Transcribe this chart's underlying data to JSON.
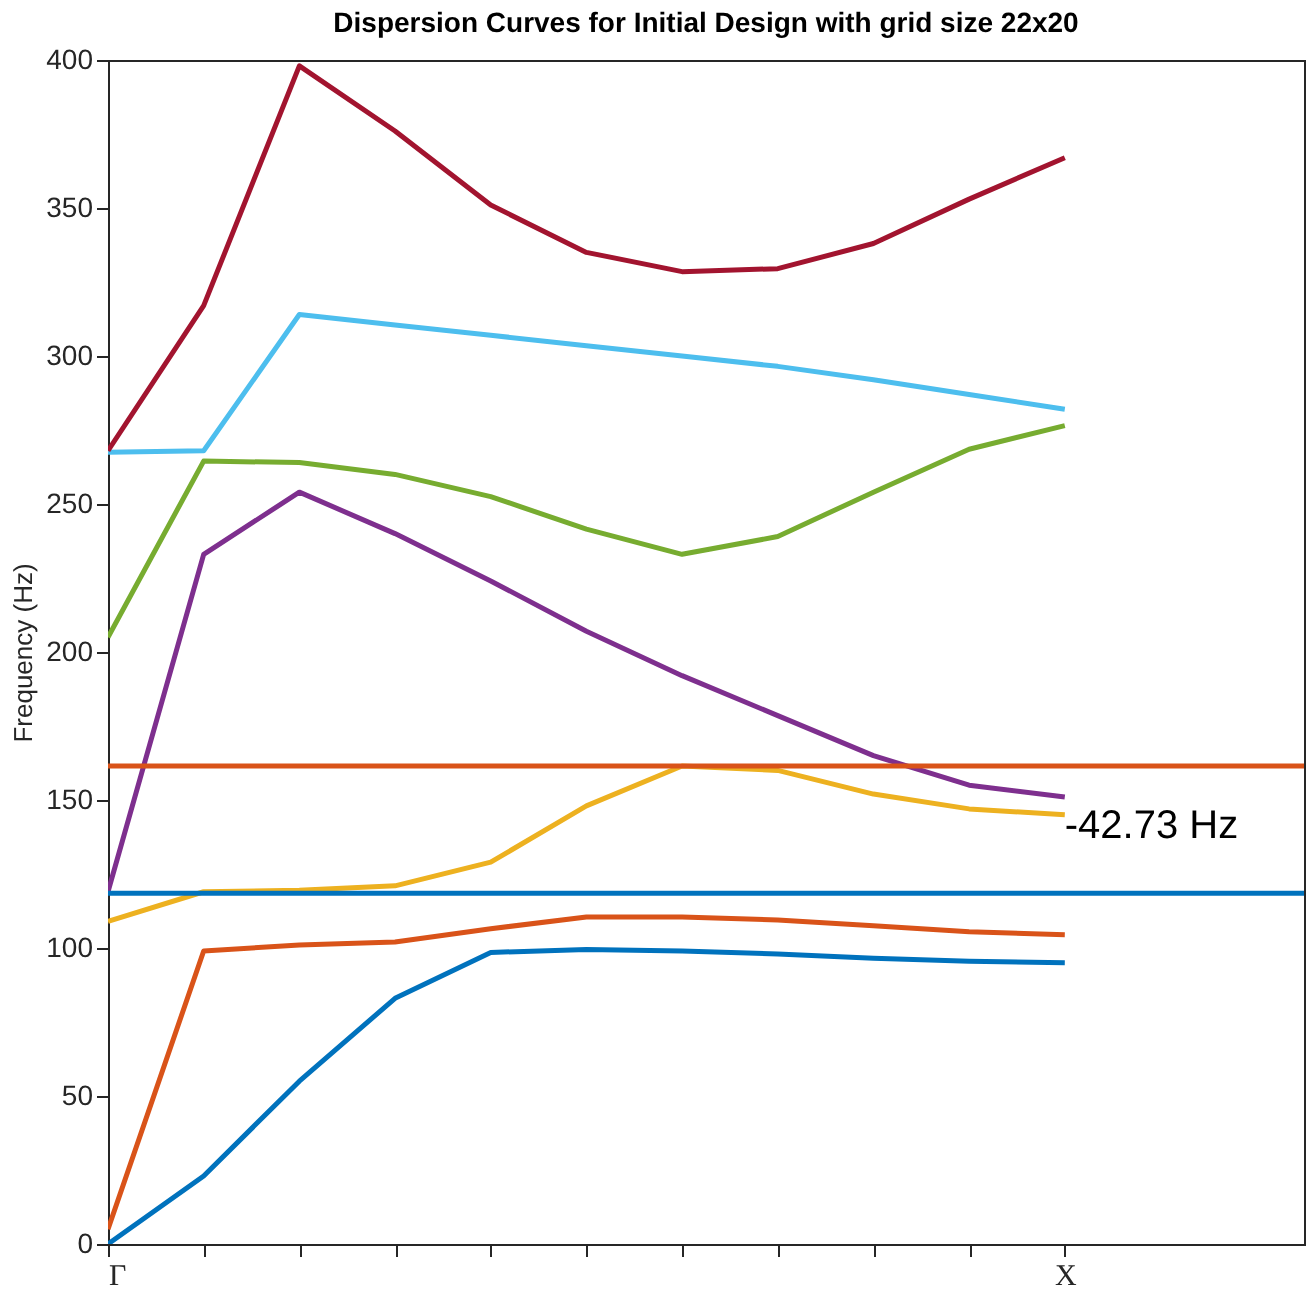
{
  "chart_data": {
    "type": "line",
    "title": "Dispersion Curves for Initial Design with grid size 22x20",
    "ylabel": "Frequency (Hz)",
    "categories": [
      "Γ",
      null,
      null,
      null,
      null,
      null,
      null,
      null,
      null,
      null,
      "X"
    ],
    "ylim": [
      0,
      400
    ],
    "yticks": [
      0,
      50,
      100,
      150,
      200,
      250,
      300,
      350,
      400
    ],
    "grid": false,
    "legend": false,
    "marker": "none",
    "line_style": "solid",
    "series": [
      {
        "color": "#0072bd",
        "values": [
          0,
          23,
          55,
          83,
          98.5,
          99.5,
          99,
          98,
          96.5,
          95.5,
          95
        ]
      },
      {
        "color": "#d95319",
        "values": [
          5,
          99,
          101,
          102,
          106.5,
          110.5,
          110.5,
          109.5,
          107.5,
          105.5,
          104.5
        ]
      },
      {
        "color": "#edb120",
        "values": [
          109,
          119,
          119.5,
          121,
          129,
          148,
          161.5,
          160,
          152,
          147,
          145
        ]
      },
      {
        "color": "#7e2f8e",
        "values": [
          119,
          233,
          254,
          240,
          224,
          207,
          192,
          178.5,
          165,
          155,
          151
        ]
      },
      {
        "color": "#77ac30",
        "values": [
          205,
          264.5,
          264,
          260,
          252.5,
          241.5,
          233,
          239,
          254,
          268.5,
          276.5
        ]
      },
      {
        "color": "#4dbeee",
        "values": [
          267.5,
          268,
          314,
          310.5,
          307,
          303.5,
          300,
          296.5,
          292,
          287,
          282
        ]
      },
      {
        "color": "#a2142f",
        "values": [
          268,
          317,
          398,
          376,
          351,
          335,
          328.5,
          329.5,
          338,
          353,
          367
        ]
      }
    ],
    "ref_lines": [
      {
        "axis": "y",
        "value": 161.5,
        "color": "#d95319",
        "line_style": "solid"
      },
      {
        "axis": "y",
        "value": 118.5,
        "color": "#0072bd",
        "line_style": "solid"
      }
    ],
    "annotations": [
      "-42.73 Hz"
    ]
  }
}
